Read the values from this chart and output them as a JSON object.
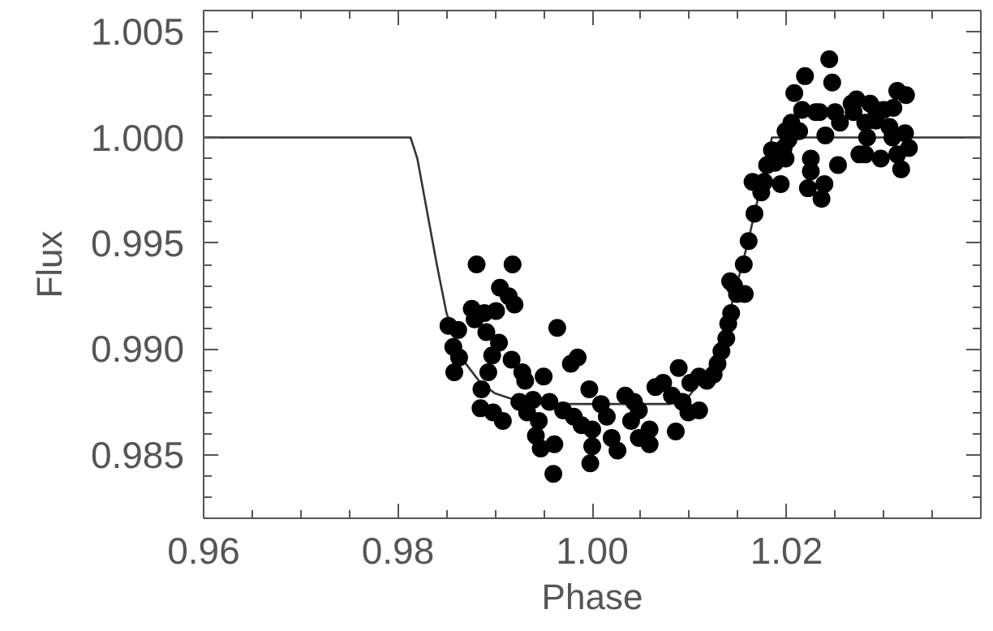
{
  "chart_data": {
    "type": "scatter",
    "xlabel": "Phase",
    "ylabel": "Flux",
    "xlim": [
      0.96,
      1.04
    ],
    "ylim": [
      0.982,
      1.006
    ],
    "xticks": [
      0.96,
      {
        "value": 0.965,
        "label": null
      },
      {
        "value": 0.97,
        "label": null
      },
      {
        "value": 0.975,
        "label": null
      },
      0.98,
      {
        "value": 0.985,
        "label": null
      },
      {
        "value": 0.99,
        "label": null
      },
      {
        "value": 0.995,
        "label": null
      },
      {
        "value": 1.0,
        "label": "1.00"
      },
      {
        "value": 1.005,
        "label": null
      },
      {
        "value": 1.01,
        "label": null
      },
      {
        "value": 1.015,
        "label": null
      },
      1.02,
      {
        "value": 1.025,
        "label": null
      },
      {
        "value": 1.03,
        "label": null
      },
      {
        "value": 1.035,
        "label": null
      }
    ],
    "yticks": [
      {
        "value": 0.983,
        "label": null
      },
      {
        "value": 0.984,
        "label": null
      },
      0.985,
      {
        "value": 0.986,
        "label": null
      },
      {
        "value": 0.987,
        "label": null
      },
      {
        "value": 0.988,
        "label": null
      },
      {
        "value": 0.989,
        "label": null
      },
      {
        "value": 0.99,
        "label": "0.990"
      },
      {
        "value": 0.991,
        "label": null
      },
      {
        "value": 0.992,
        "label": null
      },
      {
        "value": 0.993,
        "label": null
      },
      {
        "value": 0.994,
        "label": null
      },
      0.995,
      {
        "value": 0.996,
        "label": null
      },
      {
        "value": 0.997,
        "label": null
      },
      {
        "value": 0.998,
        "label": null
      },
      {
        "value": 0.999,
        "label": null
      },
      {
        "value": 1.0,
        "label": "1.000"
      },
      {
        "value": 1.001,
        "label": null
      },
      {
        "value": 1.002,
        "label": null
      },
      {
        "value": 1.003,
        "label": null
      },
      {
        "value": 1.004,
        "label": null
      },
      1.005
    ],
    "grid": false,
    "series": [
      {
        "type": "line",
        "color": "#333333",
        "marker": "none",
        "line_style": "solid",
        "x": [
          0.96,
          0.9813,
          0.982,
          0.983,
          0.984,
          0.985,
          0.9857,
          0.987,
          0.9885,
          0.99,
          0.992,
          0.995,
          1.0,
          1.008,
          1.01,
          1.012,
          1.014,
          1.016,
          1.0175,
          1.0185,
          1.04
        ],
        "values": [
          1.0,
          1.0,
          0.999,
          0.9965,
          0.994,
          0.9917,
          0.9908,
          0.9893,
          0.9884,
          0.9879,
          0.9876,
          0.9874,
          0.9874,
          0.9874,
          0.9878,
          0.989,
          0.9915,
          0.995,
          0.998,
          1.0,
          1.0
        ]
      },
      {
        "color": "#000000",
        "marker": "circle",
        "x": [
          0.9881,
          0.9918,
          0.9905,
          0.9914,
          0.992,
          0.9876,
          0.9889,
          0.9901,
          0.9879,
          0.9852,
          0.9862,
          0.9891,
          0.9904,
          0.9964,
          0.9857,
          0.9863,
          0.9858,
          0.9897,
          0.9917,
          0.9978,
          0.9985,
          0.9893,
          0.9928,
          0.995,
          0.9931,
          0.9886,
          0.9885,
          0.9898,
          0.9908,
          0.9997,
          0.9925,
          0.9939,
          0.9956,
          0.9933,
          0.9945,
          0.9942,
          0.9947,
          0.9961,
          0.996,
          0.997,
          0.9981,
          0.9989,
          1.0,
          1.0,
          0.9998,
          1.0009,
          1.0015,
          1.002,
          1.0026,
          1.0034,
          1.0043,
          1.0048,
          1.004,
          1.0048,
          1.0059,
          1.0059,
          1.0065,
          1.0073,
          1.0082,
          1.0093,
          1.0086,
          1.0099,
          1.011,
          1.0089,
          1.0101,
          1.011,
          1.0118,
          1.0125,
          1.0129,
          1.0133,
          1.0138,
          1.014,
          1.0143,
          1.0146,
          1.0149,
          1.0142,
          1.0157,
          1.0156,
          1.0161,
          1.0167,
          1.0165,
          1.0174,
          1.0177,
          1.018,
          1.0188,
          1.0185,
          1.0194,
          1.0199,
          1.0197,
          1.0202,
          1.0199,
          1.0213,
          1.0205,
          1.0216,
          1.0208,
          1.0219,
          1.0222,
          1.0225,
          1.0225,
          1.0236,
          1.0239,
          1.023,
          1.0234,
          1.024,
          1.0244,
          1.0247,
          1.025,
          1.0253,
          1.0255,
          1.0267,
          1.0272,
          1.0269,
          1.0281,
          1.0283,
          1.0275,
          1.0281,
          1.0286,
          1.0292,
          1.0297,
          1.03,
          1.0306,
          1.031,
          1.0309,
          1.0314,
          1.0323,
          1.0314,
          1.0318,
          1.0322,
          1.0326,
          1.0292
        ],
        "values": [
          0.994,
          0.994,
          0.9929,
          0.9925,
          0.9921,
          0.9919,
          0.9917,
          0.9918,
          0.9914,
          0.9911,
          0.9909,
          0.9908,
          0.9903,
          0.991,
          0.9901,
          0.9896,
          0.9889,
          0.9897,
          0.9895,
          0.9893,
          0.9896,
          0.9889,
          0.9889,
          0.9887,
          0.9885,
          0.9881,
          0.9872,
          0.987,
          0.9866,
          0.9881,
          0.9875,
          0.9876,
          0.9875,
          0.987,
          0.9866,
          0.9859,
          0.9853,
          0.9855,
          0.9841,
          0.9871,
          0.9868,
          0.9864,
          0.9862,
          0.9854,
          0.9846,
          0.9874,
          0.9868,
          0.9858,
          0.9852,
          0.9878,
          0.9875,
          0.9871,
          0.9866,
          0.9858,
          0.9862,
          0.9855,
          0.9882,
          0.9884,
          0.9878,
          0.9875,
          0.9861,
          0.987,
          0.9871,
          0.9891,
          0.9884,
          0.9887,
          0.9885,
          0.9888,
          0.9893,
          0.9899,
          0.9905,
          0.9912,
          0.9917,
          0.993,
          0.9926,
          0.9932,
          0.9926,
          0.994,
          0.9951,
          0.9964,
          0.9979,
          0.9974,
          0.9979,
          0.9987,
          0.9988,
          0.9994,
          0.9978,
          0.999,
          0.9995,
          0.9999,
          1.0003,
          1.0003,
          1.0007,
          1.0013,
          1.0021,
          1.0029,
          0.9976,
          0.9984,
          0.999,
          0.9971,
          0.9978,
          1.0012,
          1.0012,
          1.0001,
          1.0037,
          1.0026,
          1.0012,
          0.9987,
          1.0007,
          1.0016,
          1.0018,
          1.0012,
          1.0007,
          1.0,
          0.9992,
          0.9992,
          1.0016,
          1.0013,
          0.999,
          1.0013,
          1.0005,
          1.0014,
          1.0,
          1.0022,
          1.002,
          0.9992,
          0.9985,
          1.0002,
          0.9995,
          1.0008
        ]
      }
    ]
  }
}
